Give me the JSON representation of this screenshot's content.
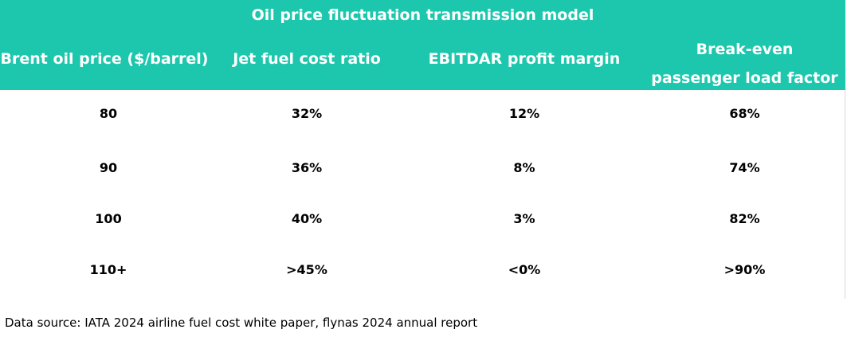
{
  "colors": {
    "header_bg": "#1dc7ad",
    "header_text": "#ffffff",
    "body_text": "#000000"
  },
  "table": {
    "title": "Oil price fluctuation transmission model",
    "columns": [
      "Brent oil price ($/barrel)",
      "Jet fuel cost ratio",
      "EBITDAR profit margin",
      "Break-even passenger load factor"
    ],
    "column_3_lines": [
      "Break-even",
      "passenger load factor"
    ],
    "rows": [
      [
        "80",
        "32%",
        "12%",
        "68%"
      ],
      [
        "90",
        "36%",
        "8%",
        "74%"
      ],
      [
        "100",
        "40%",
        "3%",
        "82%"
      ],
      [
        "110+",
        ">45%",
        "<0%",
        ">90%"
      ]
    ]
  },
  "footer": {
    "source": "Data source: IATA 2024 airline fuel cost white paper, flynas 2024 annual report"
  }
}
